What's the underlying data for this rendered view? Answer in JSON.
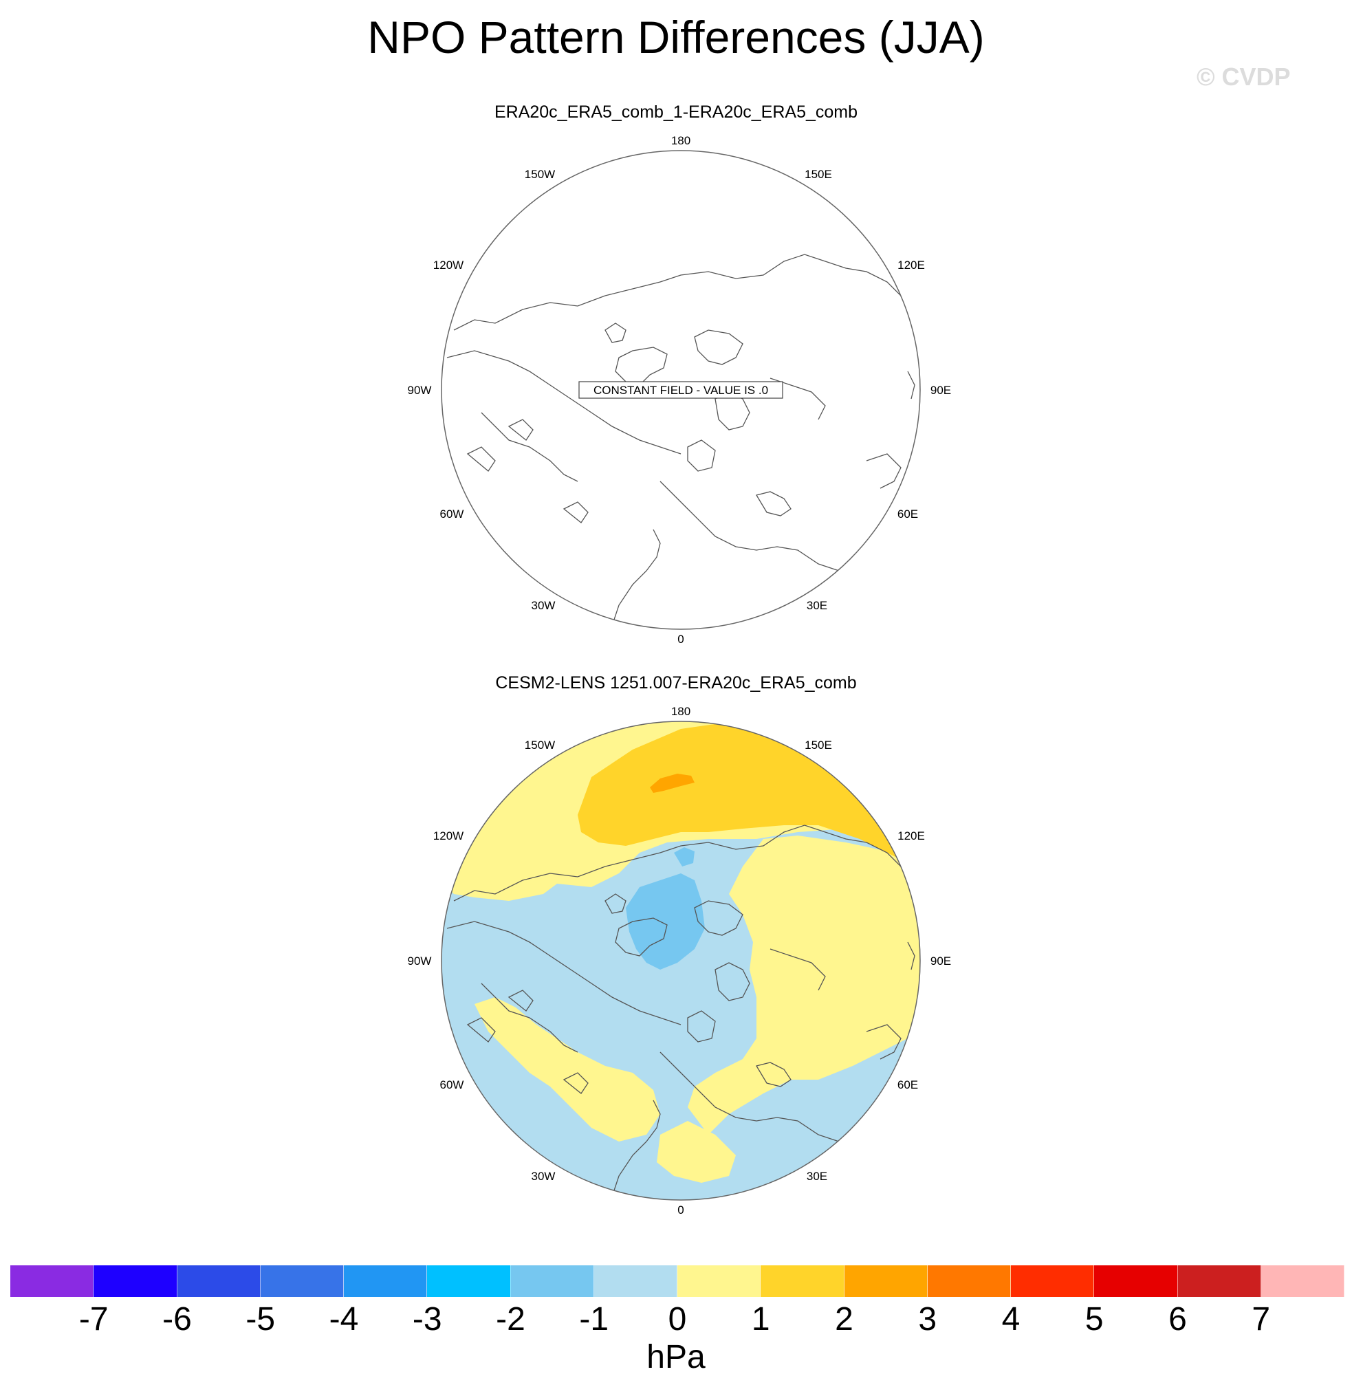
{
  "title": "NPO Pattern Differences (JJA)",
  "watermark": "© CVDP",
  "panels": [
    {
      "title": "ERA20c_ERA5_comb_1-ERA20c_ERA5_comb",
      "annotation": "CONSTANT FIELD - VALUE IS .0",
      "field": "constant",
      "value": 0
    },
    {
      "title": "CESM2-LENS 1251.007-ERA20c_ERA5_comb",
      "field": "anomaly",
      "regions": [
        {
          "name": "north-pacific-positive",
          "range": "1 to 2"
        },
        {
          "name": "north-pacific-max",
          "range": "2 to 3"
        },
        {
          "name": "arctic-negative",
          "range": "-2 to -1"
        },
        {
          "name": "eurasia-positive",
          "range": "0 to 1"
        },
        {
          "name": "atlantic-positive",
          "range": "0 to 1"
        },
        {
          "name": "background-negative",
          "range": "-1 to 0"
        }
      ]
    }
  ],
  "longitude_labels": [
    "180",
    "150E",
    "120E",
    "90E",
    "60E",
    "30E",
    "0",
    "30W",
    "60W",
    "90W",
    "120W",
    "150W"
  ],
  "colorbar": {
    "units": "hPa",
    "ticks": [
      "-7",
      "-6",
      "-5",
      "-4",
      "-3",
      "-2",
      "-1",
      "0",
      "1",
      "2",
      "3",
      "4",
      "5",
      "6",
      "7"
    ],
    "colors": [
      "#8a2be2",
      "#1e00ff",
      "#2c4be8",
      "#3773e8",
      "#2196f3",
      "#00c0ff",
      "#76c7f0",
      "#b2ddf0",
      "#fff68f",
      "#ffd42a",
      "#ffa500",
      "#ff7800",
      "#ff2d00",
      "#e60000",
      "#cc1f1f",
      "#ffb6b6"
    ]
  },
  "palette": {
    "coast": "#555555",
    "rim": "#666666"
  }
}
